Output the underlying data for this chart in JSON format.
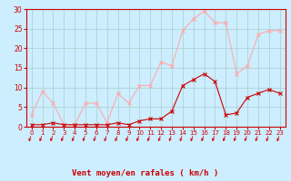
{
  "x": [
    0,
    1,
    2,
    3,
    4,
    5,
    6,
    7,
    8,
    9,
    10,
    11,
    12,
    13,
    14,
    15,
    16,
    17,
    18,
    19,
    20,
    21,
    22,
    23
  ],
  "wind_avg": [
    0.5,
    0.5,
    1.0,
    0.5,
    0.5,
    0.5,
    0.5,
    0.5,
    1.0,
    0.5,
    1.5,
    2.0,
    2.0,
    4.0,
    10.5,
    12.0,
    13.5,
    11.5,
    3.0,
    3.5,
    7.5,
    8.5,
    9.5,
    8.5
  ],
  "wind_gust": [
    3.0,
    9.0,
    6.0,
    0.5,
    0.5,
    6.0,
    6.0,
    1.0,
    8.5,
    6.0,
    10.5,
    10.5,
    16.5,
    15.5,
    24.5,
    27.5,
    29.5,
    26.5,
    26.5,
    13.5,
    15.5,
    23.5,
    24.5,
    24.5
  ],
  "xlabel": "Vent moyen/en rafales ( km/h )",
  "ylim": [
    0,
    30
  ],
  "xlim": [
    -0.5,
    23.5
  ],
  "yticks": [
    0,
    5,
    10,
    15,
    20,
    25,
    30
  ],
  "xticks": [
    0,
    1,
    2,
    3,
    4,
    5,
    6,
    7,
    8,
    9,
    10,
    11,
    12,
    13,
    14,
    15,
    16,
    17,
    18,
    19,
    20,
    21,
    22,
    23
  ],
  "color_avg": "#cc0000",
  "color_gust": "#ffaaaa",
  "bg_color": "#cceeff",
  "grid_color": "#aacccc",
  "tick_label_color": "#cc0000",
  "axis_label_color": "#cc0000",
  "spine_color": "#cc0000"
}
